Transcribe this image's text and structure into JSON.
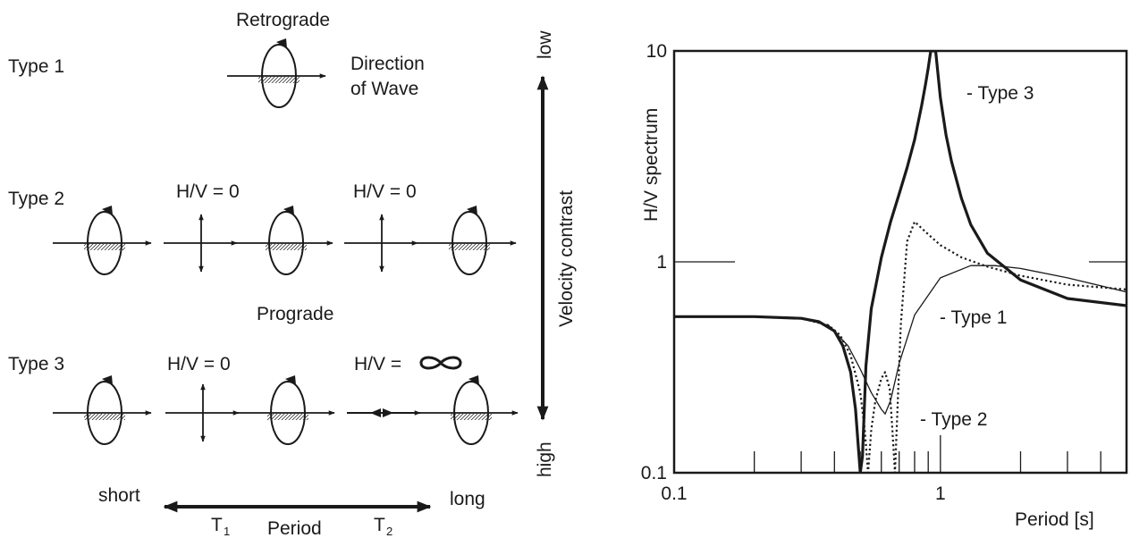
{
  "diagram": {
    "row_labels": [
      "Type 1",
      "Type 2",
      "Type 3"
    ],
    "retrograde": "Retrograde",
    "direction_line1": "Direction",
    "direction_line2": "of Wave",
    "hv_zero": "H/V = 0",
    "hv_inf_prefix": "H/V =",
    "prograde": "Prograde",
    "short": "short",
    "long": "long",
    "period": "Period",
    "t1_main": "T",
    "t1_sub": "1",
    "t2_main": "T",
    "t2_sub": "2",
    "velocity_contrast": "Velocity contrast",
    "low": "low",
    "high": "high"
  },
  "chart_data": {
    "type": "line",
    "xlabel": "Period [s]",
    "ylabel": "H/V spectrum",
    "xscale": "log",
    "yscale": "log",
    "xlim": [
      0.1,
      5
    ],
    "ylim": [
      0.1,
      10
    ],
    "xticklabels": [
      "0.1",
      "1"
    ],
    "yticklabels": [
      "0.1",
      "1",
      "10"
    ],
    "grid": false,
    "series": [
      {
        "name": "- Type 1",
        "style": "thin",
        "x": [
          0.1,
          0.2,
          0.3,
          0.38,
          0.45,
          0.5,
          0.55,
          0.6,
          0.62,
          0.65,
          0.7,
          0.8,
          1.0,
          1.3,
          1.6,
          2.0,
          3.0,
          5.0
        ],
        "y": [
          0.55,
          0.55,
          0.54,
          0.5,
          0.4,
          0.31,
          0.24,
          0.2,
          0.19,
          0.22,
          0.33,
          0.56,
          0.84,
          0.96,
          0.96,
          0.93,
          0.84,
          0.72
        ]
      },
      {
        "name": "- Type 2",
        "style": "dotted",
        "x": [
          0.1,
          0.2,
          0.3,
          0.38,
          0.42,
          0.46,
          0.5,
          0.52,
          0.535,
          0.55,
          0.57,
          0.6,
          0.62,
          0.645,
          0.66,
          0.675,
          0.69,
          0.71,
          0.75,
          0.8,
          0.9,
          1.0,
          1.2,
          1.5,
          2.0,
          3.0,
          5.0
        ],
        "y": [
          0.55,
          0.55,
          0.54,
          0.5,
          0.45,
          0.36,
          0.24,
          0.16,
          0.1,
          0.16,
          0.22,
          0.28,
          0.3,
          0.25,
          0.16,
          0.1,
          0.2,
          0.5,
          1.25,
          1.55,
          1.35,
          1.2,
          1.05,
          0.95,
          0.86,
          0.78,
          0.74
        ]
      },
      {
        "name": "- Type 3",
        "style": "thick",
        "x": [
          0.1,
          0.2,
          0.3,
          0.35,
          0.4,
          0.43,
          0.46,
          0.48,
          0.49,
          0.5,
          0.51,
          0.525,
          0.55,
          0.6,
          0.65,
          0.7,
          0.75,
          0.8,
          0.85,
          0.88,
          0.9,
          0.92,
          0.94,
          0.96,
          1.0,
          1.05,
          1.1,
          1.2,
          1.3,
          1.5,
          2.0,
          3.0,
          5.0
        ],
        "y": [
          0.55,
          0.55,
          0.54,
          0.52,
          0.47,
          0.4,
          0.3,
          0.2,
          0.14,
          0.1,
          0.12,
          0.32,
          0.6,
          1.05,
          1.55,
          2.1,
          2.8,
          3.8,
          5.5,
          7.0,
          8.3,
          10,
          10,
          10,
          6.0,
          4.0,
          3.0,
          2.0,
          1.5,
          1.1,
          0.82,
          0.67,
          0.62
        ]
      }
    ],
    "annotations": [
      "- Type 1",
      "- Type 2",
      "- Type 3"
    ]
  }
}
